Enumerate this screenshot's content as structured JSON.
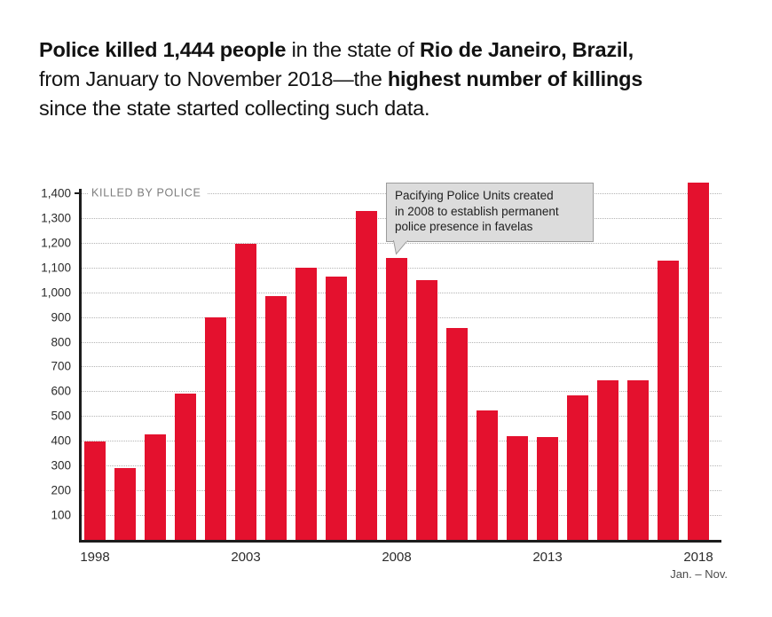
{
  "title": {
    "lines": [
      [
        {
          "text": "Police killed 1,444 people",
          "bold": true
        },
        {
          "text": " in the state of ",
          "bold": false
        },
        {
          "text": "Rio de Janeiro, Brazil,",
          "bold": true
        }
      ],
      [
        {
          "text": "from January to November 2018—the ",
          "bold": false
        },
        {
          "text": "highest number of killings",
          "bold": true
        }
      ],
      [
        {
          "text": "since the state started collecting such data.",
          "bold": false
        }
      ]
    ]
  },
  "chart_data": {
    "type": "bar",
    "axis_title": "KILLED BY POLICE",
    "categories": [
      1998,
      1999,
      2000,
      2001,
      2002,
      2003,
      2004,
      2005,
      2006,
      2007,
      2008,
      2009,
      2010,
      2011,
      2012,
      2013,
      2014,
      2015,
      2016,
      2017,
      2018
    ],
    "values": [
      397,
      289,
      427,
      592,
      900,
      1195,
      983,
      1098,
      1063,
      1330,
      1137,
      1048,
      855,
      523,
      419,
      416,
      584,
      645,
      645,
      1127,
      1444
    ],
    "ylim": [
      0,
      1450
    ],
    "y_ticks": [
      100,
      200,
      300,
      400,
      500,
      600,
      700,
      800,
      900,
      1000,
      1100,
      1200,
      1300,
      1400
    ],
    "y_tick_labels": [
      "100",
      "200",
      "300",
      "400",
      "500",
      "600",
      "700",
      "800",
      "900",
      "1,000",
      "1,100",
      "1,200",
      "1,300",
      "1,400"
    ],
    "x_tick_labels": [
      "1998",
      "2003",
      "2008",
      "2013",
      "2018"
    ],
    "x_tick_positions": [
      0,
      5,
      10,
      15,
      20
    ],
    "x_subnote": "Jan. – Nov.",
    "grid": true,
    "legend": "none",
    "annotation": {
      "text": "Pacifying Police Units created\nin 2008 to establish permanent\npolice presence in favelas",
      "target_year": 2008
    },
    "bar_color": "#e4112e"
  },
  "colors": {
    "bar_red": "#e4112e",
    "axis": "#1c1c1c",
    "gridline": "#b4b4b4",
    "tick_label": "#2b2b2b",
    "axis_title_gray": "#7d7d7d",
    "annotation_bg": "#dcdcdc",
    "annotation_border": "#9b9b9b",
    "background": "#ffffff"
  }
}
